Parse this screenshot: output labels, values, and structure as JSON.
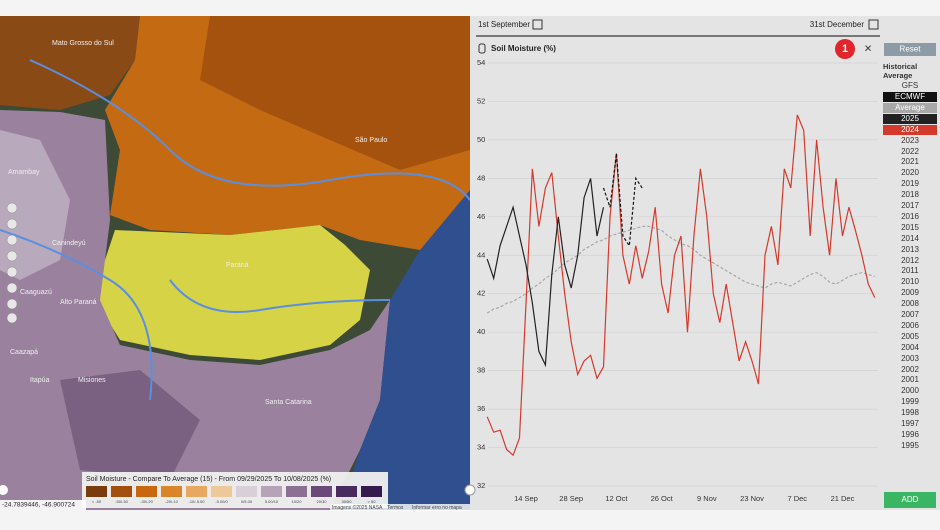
{
  "map": {
    "labels": [
      "Mato Grosso do Sul",
      "São Paulo",
      "Paraná",
      "Santa Catarina",
      "Amambay",
      "Canindeyú",
      "Caaguazú",
      "Alto Paraná",
      "Caazapá",
      "Itapúa",
      "Misiones"
    ],
    "legend_title": "Soil Moisture - Compare To Average (15) - From 09/29/2025 To 10/08/2025 (%)",
    "legend_labels": [
      "< -50",
      "-50/-30",
      "-30/-20",
      "-20/-10",
      "-10/-5.00",
      "-5.00/0",
      "0/5.00",
      "5.00/10",
      "10/20",
      "20/30",
      "30/50",
      "> 50"
    ],
    "coordinates": "-24.7839446, -46.900724",
    "footer": [
      "Imagens ©2025 NASA",
      "Termos",
      "Informar erro no mapa"
    ]
  },
  "date_range": {
    "start": "1st September",
    "end": "31st December"
  },
  "badge": "1",
  "close": "×",
  "sidebar": {
    "reset": "Reset",
    "heading": "Historical Average",
    "gfs": "GFS",
    "years": [
      "2023",
      "2022",
      "2021",
      "2020",
      "2019",
      "2018",
      "2017",
      "2016",
      "2015",
      "2014",
      "2013",
      "2012",
      "2011",
      "2010",
      "2009",
      "2008",
      "2007",
      "2006",
      "2005",
      "2004",
      "2003",
      "2002",
      "2001",
      "2000",
      "1999",
      "1998",
      "1997",
      "1996",
      "1995"
    ],
    "add": "ADD"
  },
  "chart_data": {
    "type": "line",
    "title": "Soil Moisture (%)",
    "categories": [
      null,
      null,
      null,
      null,
      null,
      null,
      "14 Sep",
      null,
      null,
      null,
      null,
      null,
      null,
      "28 Sep",
      null,
      null,
      null,
      null,
      null,
      null,
      "12 Oct",
      null,
      null,
      null,
      null,
      null,
      null,
      "26 Oct",
      null,
      null,
      null,
      null,
      null,
      null,
      "9 Nov",
      null,
      null,
      null,
      null,
      null,
      null,
      "23 Nov",
      null,
      null,
      null,
      null,
      null,
      null,
      "7 Dec",
      null,
      null,
      null,
      null,
      null,
      null,
      "21 Dec",
      null,
      null,
      null,
      null,
      null
    ],
    "ylim": [
      32,
      54
    ],
    "yticks": [
      32,
      34,
      36,
      38,
      40,
      42,
      44,
      46,
      48,
      50,
      52,
      54
    ],
    "grid": true,
    "series": [
      {
        "name": "ECMWF",
        "color": "#111111",
        "dash": true,
        "values": [
          null,
          null,
          null,
          null,
          null,
          null,
          null,
          null,
          null,
          null,
          null,
          null,
          null,
          null,
          null,
          null,
          null,
          null,
          47.5,
          46.5,
          49.3,
          45,
          44.5,
          48,
          47.5,
          null,
          null,
          null,
          null,
          null,
          null,
          null,
          null,
          null,
          null,
          null,
          null,
          null,
          null,
          null,
          null,
          null,
          null,
          null,
          null,
          null,
          null,
          null,
          null,
          null,
          null,
          null,
          null,
          null,
          null,
          null,
          null,
          null,
          null,
          null,
          null
        ]
      },
      {
        "name": "Average",
        "color": "#a8a8a8",
        "dash": true,
        "values": [
          41,
          41.2,
          41.3,
          41.5,
          41.6,
          41.8,
          42,
          42.3,
          42.5,
          42.8,
          43,
          43.3,
          43.6,
          43.8,
          44,
          44.3,
          44.5,
          44.7,
          44.8,
          45,
          45.1,
          45.2,
          45.3,
          45.4,
          45.5,
          45.5,
          45.4,
          45.3,
          45,
          44.8,
          44.6,
          44.5,
          44.3,
          44,
          43.8,
          43.6,
          43.4,
          43.2,
          43,
          42.8,
          42.6,
          42.5,
          42.4,
          42.3,
          42.5,
          42.6,
          42.5,
          42.4,
          42.6,
          42.8,
          43,
          43.1,
          42.9,
          42.6,
          42.5,
          42.7,
          42.9,
          43,
          43.1,
          43,
          42.9
        ]
      },
      {
        "name": "2025",
        "color": "#222222",
        "dash": false,
        "values": [
          43.8,
          42.8,
          44.5,
          45.5,
          46.5,
          45,
          43.5,
          41.5,
          39,
          38.3,
          43,
          46,
          43.5,
          42.3,
          44,
          47,
          48,
          45,
          46.5,
          null,
          null,
          null,
          null,
          null,
          null,
          null,
          null,
          null,
          null,
          null,
          null,
          null,
          null,
          null,
          null,
          null,
          null,
          null,
          null,
          null,
          null,
          null,
          null,
          null,
          null,
          null,
          null,
          null,
          null,
          null,
          null,
          null,
          null,
          null,
          null,
          null,
          null,
          null,
          null,
          null,
          null
        ]
      },
      {
        "name": "2024",
        "color": "#d33a2c",
        "dash": false,
        "values": [
          35.6,
          34.8,
          34.9,
          33.9,
          33.6,
          34.5,
          41.5,
          48.5,
          45.5,
          47.5,
          48.3,
          45,
          42,
          39.5,
          37.8,
          38.5,
          38.8,
          37.6,
          38.2,
          46,
          49.3,
          44,
          42.5,
          44.5,
          42.8,
          44.2,
          46.5,
          42.5,
          41,
          44,
          45,
          40,
          45,
          48.5,
          46,
          42,
          40.5,
          42.5,
          40.5,
          38.5,
          39.5,
          38.5,
          37.3,
          44,
          45.5,
          43.5,
          48.5,
          47.5,
          51.3,
          50.5,
          45,
          50,
          46.5,
          44,
          48,
          45,
          46.5,
          45.3,
          44,
          42.5,
          41.8
        ]
      }
    ]
  }
}
